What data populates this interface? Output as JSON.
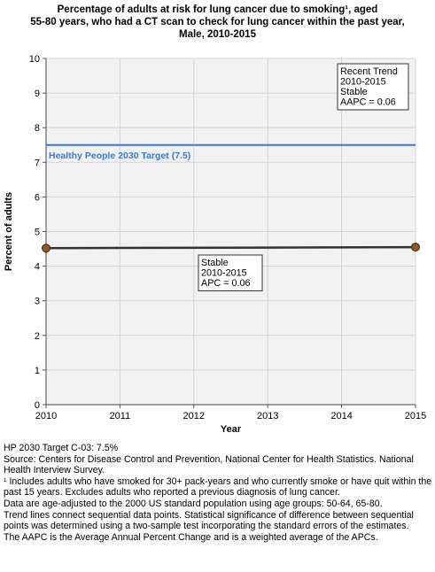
{
  "title_lines": [
    "Percentage of adults at risk for lung cancer due to smoking¹, aged",
    "55-80 years, who had a CT scan to check for lung cancer within the past year,",
    "Male,  2010-2015"
  ],
  "chart_data": {
    "type": "line",
    "xlabel": "Year",
    "ylabel": "Percent of adults",
    "xlim": [
      2010,
      2015
    ],
    "ylim": [
      0,
      10
    ],
    "x_ticks": [
      "2010",
      "2011",
      "2012",
      "2013",
      "2014",
      "2015"
    ],
    "y_ticks": [
      "0",
      "1",
      "2",
      "3",
      "4",
      "5",
      "6",
      "7",
      "8",
      "9",
      "10"
    ],
    "grid": true,
    "series": [
      {
        "x": [
          2010,
          2015
        ],
        "y": [
          4.52,
          4.55
        ],
        "color": "#5c3a1e",
        "role": "observed"
      },
      {
        "x": [
          2010,
          2015
        ],
        "y": [
          4.52,
          4.55
        ],
        "color": "#333333",
        "role": "trend"
      }
    ],
    "target": {
      "label": "Healthy People 2030 Target (7.5)",
      "value": 7.5,
      "color": "#3b78d8"
    },
    "annotations": {
      "recent_trend": [
        "Recent Trend",
        "2010-2015",
        "Stable",
        "AAPC =  0.06"
      ],
      "segment": [
        "Stable",
        "2010-2015",
        "APC =  0.06"
      ]
    }
  },
  "footnotes": [
    "HP 2030 Target C-03: 7.5%",
    "Source: Centers for Disease Control and Prevention, National Center for Health Statistics. National Health Interview Survey.",
    "¹ Includes adults who have smoked for 30+ pack-years and who currently smoke or have quit within the past 15 years. Excludes adults who reported a previous diagnosis of lung cancer.",
    "Data are age-adjusted to the 2000 US standard population using age groups: 50-64, 65-80.",
    "Trend lines connect sequential data points. Statistical significance of difference between sequential points was determined using a two-sample test incorporating the standard errors of the estimates.",
    "The AAPC is the Average Annual Percent Change and is a weighted average of the APCs."
  ]
}
